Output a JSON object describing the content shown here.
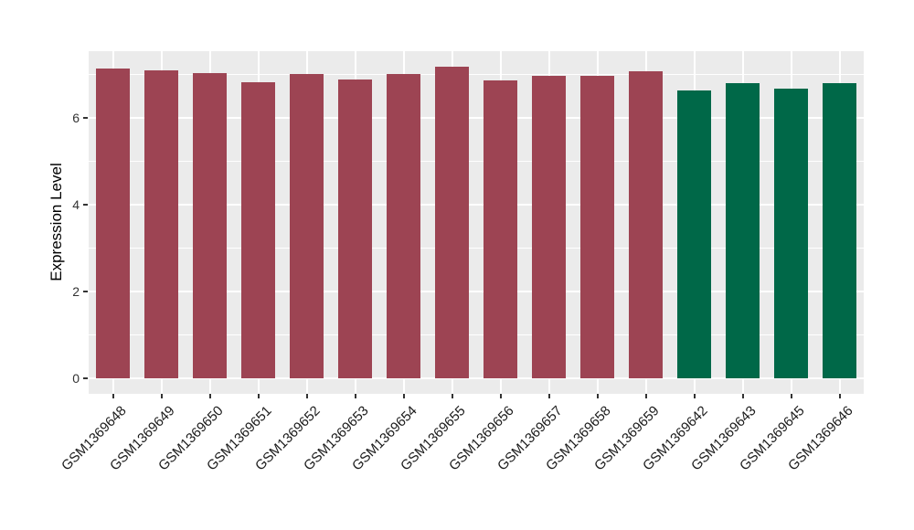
{
  "chart_data": {
    "type": "bar",
    "title": "",
    "ylabel": "Expression Level",
    "xlabel": "",
    "categories": [
      "GSM1369648",
      "GSM1369649",
      "GSM1369650",
      "GSM1369651",
      "GSM1369652",
      "GSM1369653",
      "GSM1369654",
      "GSM1369655",
      "GSM1369656",
      "GSM1369657",
      "GSM1369658",
      "GSM1369659",
      "GSM1369642",
      "GSM1369643",
      "GSM1369645",
      "GSM1369646"
    ],
    "values": [
      7.13,
      7.1,
      7.04,
      6.83,
      7.02,
      6.89,
      7.02,
      7.19,
      6.86,
      6.98,
      6.97,
      7.07,
      6.64,
      6.81,
      6.67,
      6.81
    ],
    "bar_groups": [
      "group1",
      "group1",
      "group1",
      "group1",
      "group1",
      "group1",
      "group1",
      "group1",
      "group1",
      "group1",
      "group1",
      "group1",
      "group2",
      "group2",
      "group2",
      "group2"
    ],
    "group_colors": {
      "group1": "#9D4453",
      "group2": "#006848"
    },
    "y_major_ticks": [
      0,
      2,
      4,
      6
    ],
    "y_minor_ticks": [
      1,
      3,
      5,
      7
    ],
    "ylim": [
      -0.36,
      7.54
    ],
    "legend": "none",
    "grid": "on",
    "panel_background": "#EBEBEB",
    "gridline_color": "#FFFFFF",
    "bar_width_fraction": 0.7
  }
}
